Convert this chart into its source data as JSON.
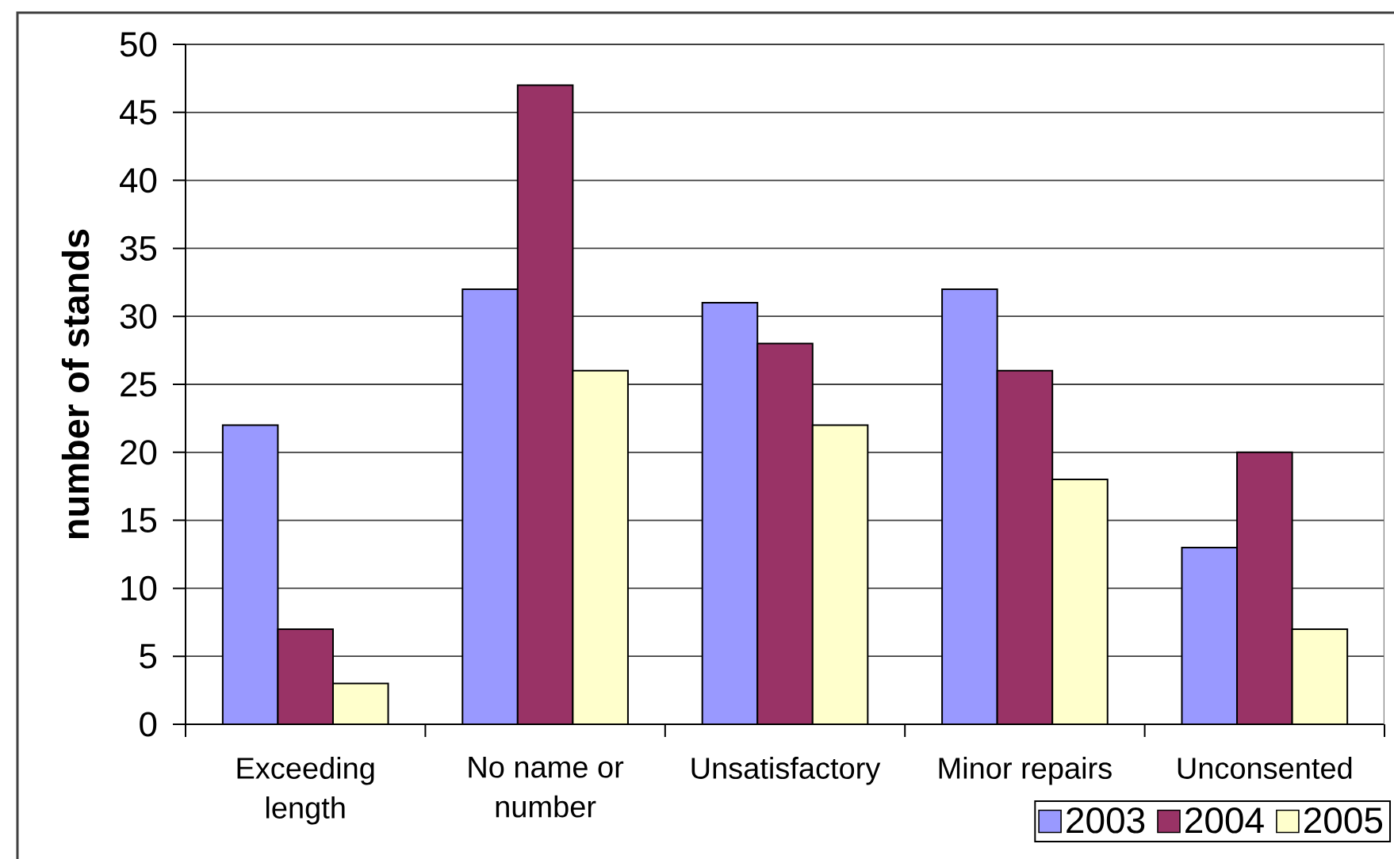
{
  "chart_data": {
    "type": "bar",
    "ylabel": "number of stands",
    "categories": [
      "Exceeding length",
      "No name or number",
      "Unsatisfactory",
      "Minor repairs",
      "Unconsented"
    ],
    "series": [
      {
        "name": "2003",
        "color": "#9999ff",
        "values": [
          22,
          32,
          31,
          32,
          13
        ]
      },
      {
        "name": "2004",
        "color": "#993366",
        "values": [
          7,
          47,
          28,
          26,
          20
        ]
      },
      {
        "name": "2005",
        "color": "#ffffcc",
        "values": [
          3,
          26,
          22,
          18,
          7
        ]
      }
    ],
    "ylim": [
      0,
      50
    ],
    "yticks": [
      0,
      5,
      10,
      15,
      20,
      25,
      30,
      35,
      40,
      45,
      50
    ],
    "grid": "y",
    "legend": "bottom right"
  }
}
